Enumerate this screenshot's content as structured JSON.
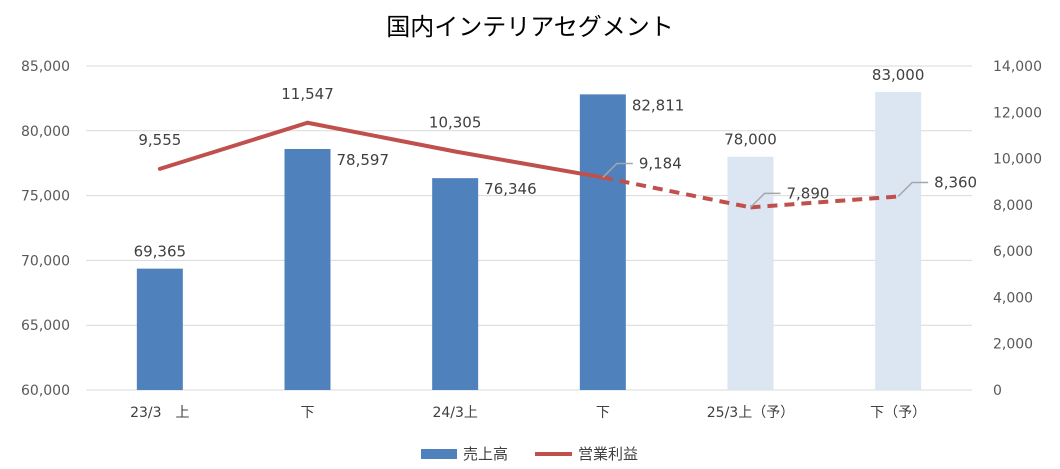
{
  "chart_data": {
    "type": "bar",
    "title": "国内インテリアセグメント",
    "categories": [
      "23/3　上",
      "下",
      "24/3上",
      "下",
      "25/3上（予）",
      "下（予）"
    ],
    "series": [
      {
        "name": "売上高",
        "type": "bar",
        "axis": "left",
        "values": [
          69365,
          78597,
          76346,
          82811,
          78000,
          83000
        ],
        "labels": [
          "69,365",
          "78,597",
          "76,346",
          "82,811",
          "78,000",
          "83,000"
        ],
        "colors": [
          "#4f81bd",
          "#4f81bd",
          "#4f81bd",
          "#4f81bd",
          "#dce6f2",
          "#dce6f2"
        ]
      },
      {
        "name": "営業利益",
        "type": "line",
        "axis": "right",
        "values": [
          9555,
          11547,
          10305,
          9184,
          7890,
          8360
        ],
        "labels": [
          "9,555",
          "11,547",
          "10,305",
          "9,184",
          "7,890",
          "8,360"
        ],
        "color": "#c0504d",
        "dashed_from_index": 3
      }
    ],
    "y_left": {
      "range": [
        60000,
        85000
      ],
      "ticks": [
        60000,
        65000,
        70000,
        75000,
        80000,
        85000
      ],
      "tick_labels": [
        "60,000",
        "65,000",
        "70,000",
        "75,000",
        "80,000",
        "85,000"
      ]
    },
    "y_right": {
      "range": [
        0,
        14000
      ],
      "ticks": [
        0,
        2000,
        4000,
        6000,
        8000,
        10000,
        12000,
        14000
      ],
      "tick_labels": [
        "0",
        "2,000",
        "4,000",
        "6,000",
        "8,000",
        "10,000",
        "12,000",
        "14,000"
      ]
    },
    "grid": true,
    "legend": "bottom"
  }
}
